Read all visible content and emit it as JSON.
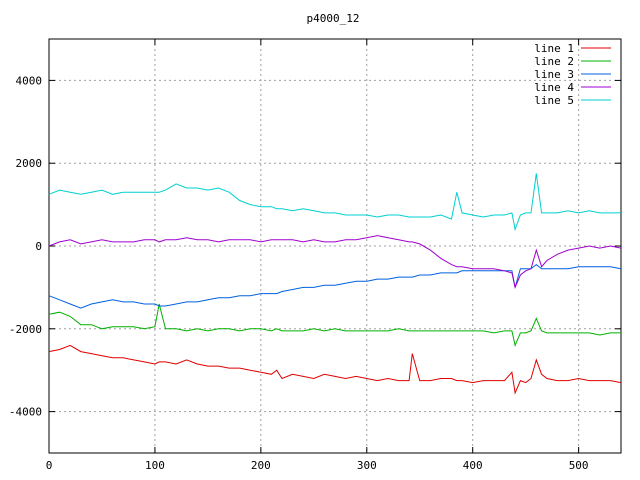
{
  "chart_data": {
    "type": "line",
    "title": "p4000_12",
    "xlabel": "",
    "ylabel": "",
    "xlim": [
      0,
      540
    ],
    "ylim": [
      -5000,
      5000
    ],
    "x_ticks": [
      0,
      100,
      200,
      300,
      400,
      500
    ],
    "y_ticks": [
      -4000,
      -2000,
      0,
      2000,
      4000
    ],
    "grid": true,
    "legend_position": "top-right",
    "x": [
      0,
      10,
      20,
      30,
      40,
      50,
      60,
      70,
      80,
      90,
      100,
      104,
      110,
      120,
      130,
      140,
      150,
      160,
      170,
      180,
      190,
      200,
      210,
      215,
      220,
      230,
      240,
      250,
      260,
      270,
      280,
      290,
      300,
      310,
      320,
      330,
      340,
      343,
      350,
      360,
      370,
      380,
      385,
      390,
      400,
      410,
      420,
      430,
      437,
      440,
      445,
      450,
      455,
      460,
      465,
      470,
      480,
      490,
      500,
      510,
      520,
      530,
      540
    ],
    "series": [
      {
        "name": "line 1",
        "color": "#e00000",
        "values": [
          -2550,
          -2500,
          -2400,
          -2550,
          -2600,
          -2650,
          -2700,
          -2700,
          -2750,
          -2800,
          -2850,
          -2800,
          -2800,
          -2850,
          -2750,
          -2850,
          -2900,
          -2900,
          -2950,
          -2950,
          -3000,
          -3050,
          -3100,
          -3000,
          -3200,
          -3100,
          -3150,
          -3200,
          -3100,
          -3150,
          -3200,
          -3150,
          -3200,
          -3250,
          -3200,
          -3250,
          -3250,
          -2600,
          -3250,
          -3250,
          -3200,
          -3200,
          -3250,
          -3250,
          -3300,
          -3250,
          -3250,
          -3250,
          -3050,
          -3550,
          -3250,
          -3300,
          -3200,
          -2750,
          -3100,
          -3200,
          -3250,
          -3250,
          -3200,
          -3250,
          -3250,
          -3250,
          -3300
        ]
      },
      {
        "name": "line 2",
        "color": "#00b000",
        "values": [
          -1650,
          -1600,
          -1700,
          -1900,
          -1900,
          -2000,
          -1950,
          -1950,
          -1950,
          -2000,
          -1950,
          -1400,
          -2000,
          -2000,
          -2050,
          -2000,
          -2050,
          -2000,
          -2000,
          -2050,
          -2000,
          -2000,
          -2050,
          -2000,
          -2050,
          -2050,
          -2050,
          -2000,
          -2050,
          -2000,
          -2050,
          -2050,
          -2050,
          -2050,
          -2050,
          -2000,
          -2050,
          -2050,
          -2050,
          -2050,
          -2050,
          -2050,
          -2050,
          -2050,
          -2050,
          -2050,
          -2100,
          -2050,
          -2050,
          -2400,
          -2100,
          -2100,
          -2050,
          -1750,
          -2050,
          -2100,
          -2100,
          -2100,
          -2100,
          -2100,
          -2150,
          -2100,
          -2100
        ]
      },
      {
        "name": "line 3",
        "color": "#0060e0",
        "values": [
          -1200,
          -1300,
          -1400,
          -1500,
          -1400,
          -1350,
          -1300,
          -1350,
          -1350,
          -1400,
          -1400,
          -1450,
          -1450,
          -1400,
          -1350,
          -1350,
          -1300,
          -1250,
          -1250,
          -1200,
          -1200,
          -1150,
          -1150,
          -1150,
          -1100,
          -1050,
          -1000,
          -1000,
          -950,
          -950,
          -900,
          -850,
          -850,
          -800,
          -800,
          -750,
          -750,
          -750,
          -700,
          -700,
          -650,
          -650,
          -650,
          -600,
          -600,
          -600,
          -600,
          -600,
          -600,
          -1000,
          -550,
          -550,
          -550,
          -450,
          -550,
          -550,
          -550,
          -550,
          -500,
          -500,
          -500,
          -500,
          -550
        ]
      },
      {
        "name": "line 4",
        "color": "#a000d0",
        "values": [
          0,
          100,
          150,
          50,
          100,
          150,
          100,
          100,
          100,
          150,
          150,
          100,
          150,
          150,
          200,
          150,
          150,
          100,
          150,
          150,
          150,
          100,
          150,
          150,
          150,
          150,
          100,
          150,
          100,
          100,
          150,
          150,
          200,
          250,
          200,
          150,
          100,
          100,
          50,
          -100,
          -300,
          -450,
          -500,
          -500,
          -550,
          -550,
          -550,
          -600,
          -650,
          -1000,
          -700,
          -600,
          -550,
          -100,
          -500,
          -350,
          -200,
          -100,
          -50,
          0,
          -50,
          0,
          -50
        ]
      },
      {
        "name": "line 5",
        "color": "#00d0d0",
        "values": [
          1250,
          1350,
          1300,
          1250,
          1300,
          1350,
          1250,
          1300,
          1300,
          1300,
          1300,
          1300,
          1350,
          1500,
          1400,
          1400,
          1350,
          1400,
          1300,
          1100,
          1000,
          950,
          950,
          900,
          900,
          850,
          900,
          850,
          800,
          800,
          750,
          750,
          750,
          700,
          750,
          750,
          700,
          700,
          700,
          700,
          750,
          650,
          1300,
          800,
          750,
          700,
          750,
          750,
          800,
          400,
          750,
          800,
          800,
          1750,
          800,
          800,
          800,
          850,
          800,
          850,
          800,
          800,
          800
        ]
      }
    ]
  }
}
